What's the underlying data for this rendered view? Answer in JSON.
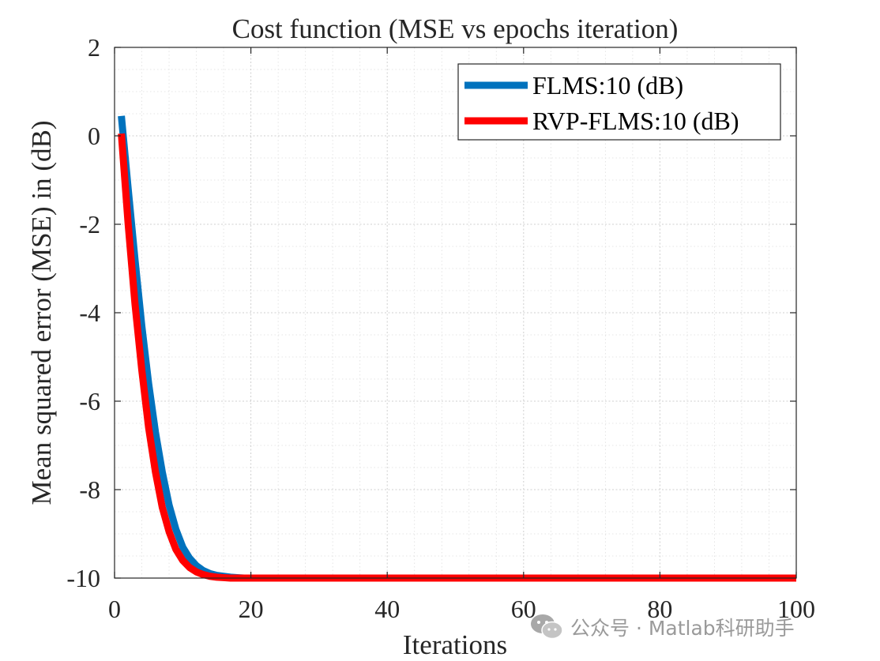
{
  "chart_data": {
    "type": "line",
    "title": "Cost function (MSE vs epochs iteration)",
    "xlabel": "Iterations",
    "ylabel": "Mean squared error (MSE) in (dB)",
    "xlim": [
      0,
      100
    ],
    "ylim": [
      -10,
      2
    ],
    "xticks": [
      0,
      20,
      40,
      60,
      80,
      100
    ],
    "yticks": [
      2,
      0,
      -2,
      -4,
      -6,
      -8,
      -10
    ],
    "grid": "major-and-minor",
    "legend_position": "top-right",
    "series": [
      {
        "name": "FLMS:10 (dB)",
        "color": "#0072BD",
        "x": [
          1,
          2,
          3,
          4,
          5,
          6,
          7,
          8,
          9,
          10,
          11,
          12,
          13,
          14,
          15,
          16,
          17,
          18,
          19,
          20,
          25,
          30,
          40,
          50,
          60,
          70,
          80,
          90,
          100
        ],
        "y": [
          0.45,
          -1.2,
          -2.8,
          -4.3,
          -5.6,
          -6.7,
          -7.6,
          -8.35,
          -8.9,
          -9.3,
          -9.55,
          -9.72,
          -9.83,
          -9.9,
          -9.94,
          -9.96,
          -9.98,
          -9.99,
          -10.0,
          -10.0,
          -10.0,
          -10.0,
          -10.0,
          -10.0,
          -10.0,
          -10.0,
          -10.0,
          -10.0,
          -10.0
        ]
      },
      {
        "name": "RVP-FLMS:10 (dB)",
        "color": "#FF0000",
        "x": [
          1,
          2,
          3,
          4,
          5,
          6,
          7,
          8,
          9,
          10,
          11,
          12,
          13,
          14,
          15,
          16,
          17,
          18,
          19,
          20,
          25,
          30,
          40,
          50,
          60,
          70,
          80,
          90,
          100
        ],
        "y": [
          0.05,
          -2.0,
          -3.8,
          -5.3,
          -6.6,
          -7.6,
          -8.4,
          -8.95,
          -9.35,
          -9.6,
          -9.76,
          -9.86,
          -9.92,
          -9.96,
          -9.98,
          -9.99,
          -10.0,
          -10.0,
          -10.0,
          -10.0,
          -10.0,
          -10.0,
          -10.0,
          -10.0,
          -10.0,
          -10.0,
          -10.0,
          -10.0,
          -10.0
        ]
      }
    ]
  },
  "watermark": {
    "text": "公众号 · Matlab科研助手",
    "icon": "wechat-icon"
  }
}
